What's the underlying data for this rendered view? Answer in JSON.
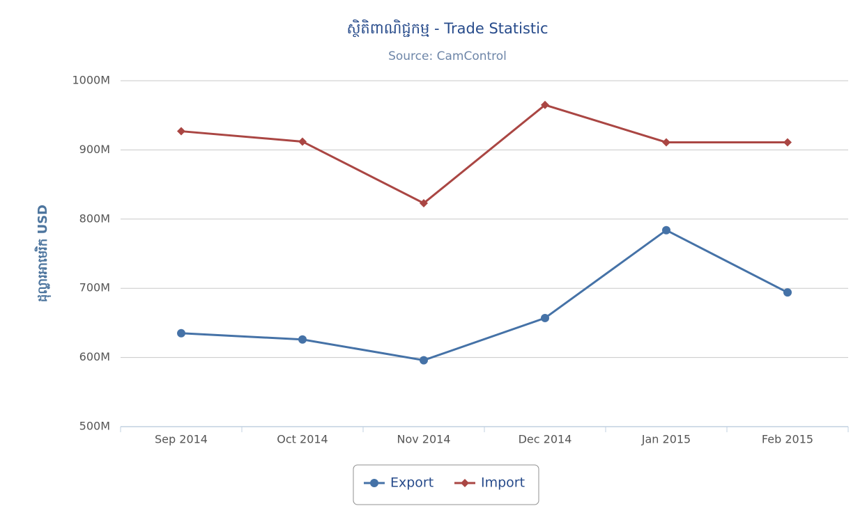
{
  "chart_data": {
    "type": "line",
    "title": "ស្ថិតិពាណិជ្ជកម្ម - Trade Statistic",
    "subtitle": "Source: CamControl",
    "y_label": "ដុល្លារអាមេរិក USD",
    "categories": [
      "Sep 2014",
      "Oct 2014",
      "Nov 2014",
      "Dec 2014",
      "Jan 2015",
      "Feb 2015"
    ],
    "series": [
      {
        "name": "Export",
        "color": "#4572a7",
        "marker": "circle",
        "values": [
          635,
          626,
          596,
          657,
          784,
          694
        ]
      },
      {
        "name": "Import",
        "color": "#aa4643",
        "marker": "diamond",
        "values": [
          927,
          912,
          823,
          965,
          911,
          911
        ]
      }
    ],
    "ylim": [
      500,
      1000
    ],
    "yticks": [
      {
        "value": 500,
        "label": "500M"
      },
      {
        "value": 600,
        "label": "600M"
      },
      {
        "value": 700,
        "label": "700M"
      },
      {
        "value": 800,
        "label": "800M"
      },
      {
        "value": 900,
        "label": "900M"
      },
      {
        "value": 1000,
        "label": "1000M"
      }
    ],
    "grid": true
  }
}
